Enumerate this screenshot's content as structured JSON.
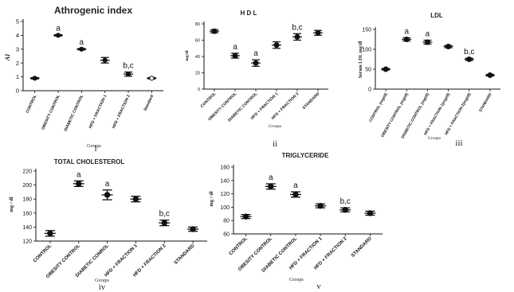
{
  "chart_data": [
    {
      "type": "scatter",
      "title": "Athrogenic index",
      "xlabel": "Groups",
      "ylabel": "AI",
      "panel_label": "i",
      "ylim": [
        0,
        5
      ],
      "yticks": [
        "0",
        "1",
        "2",
        "3",
        "4",
        "5"
      ],
      "categories": [
        "CONTROL",
        "OBESITY CONTROL",
        "DIABETIC CONTROL",
        "HFD + FRACTION 1",
        "HFD + FRACTION 2",
        "Standard"
      ],
      "values": [
        0.9,
        4.0,
        3.0,
        2.2,
        1.2,
        0.9
      ],
      "errors": [
        0.05,
        0.05,
        0.05,
        0.2,
        0.15,
        0.05
      ],
      "annotations": [
        "",
        "a",
        "a",
        "",
        "b,c",
        ""
      ]
    },
    {
      "type": "scatter",
      "title": "H D L",
      "xlabel": "Groups",
      "ylabel": "mg/dl",
      "panel_label": "ii",
      "ylim": [
        0,
        80
      ],
      "yticks": [
        "0",
        "20",
        "40",
        "60",
        "80"
      ],
      "categories": [
        "CONTROL",
        "OBESITY CONTROL",
        "DIABETIC CONTROL",
        "HFD + FRACTION 1",
        "HFD + FRACTION 2",
        "STANDARD"
      ],
      "values": [
        71,
        41,
        32,
        54,
        64,
        69
      ],
      "errors": [
        2,
        3,
        4,
        4,
        4,
        3
      ],
      "annotations": [
        "",
        "a",
        "a",
        "",
        "b,c",
        ""
      ]
    },
    {
      "type": "scatter",
      "title": "LDL",
      "xlabel": "Groups",
      "ylabel": "Serum LDL mg/dl",
      "panel_label": "iii",
      "ylim": [
        0,
        150
      ],
      "yticks": [
        "0",
        "50",
        "100",
        "150"
      ],
      "categories": [
        "CONTROL (mg/dl)",
        "OBESITY CONTROL (mg/dl)",
        "DIABETIC CONTROL (mg/dl)",
        "HFD + FRACTION 1(mg/dl)",
        "HFD + FRACTION 2(mg/dl)",
        "STANDARD"
      ],
      "values": [
        50,
        125,
        118,
        107,
        75,
        35
      ],
      "errors": [
        2,
        4,
        5,
        3,
        3,
        2
      ],
      "annotations": [
        "",
        "a",
        "a",
        "",
        "b,c",
        ""
      ]
    },
    {
      "type": "scatter",
      "title": "TOTAL CHOLESTEROL",
      "xlabel": "Groups",
      "ylabel": "mg / dl",
      "panel_label": "iv",
      "ylim": [
        120,
        220
      ],
      "yticks": [
        "120",
        "140",
        "160",
        "180",
        "200",
        "220"
      ],
      "categories": [
        "CONTROL",
        "OBESITY CONTROL",
        "DIABETIC CONROL",
        "HFD + FRACTION 1",
        "HFD + FRACTION 2",
        "STANDARD"
      ],
      "values": [
        131,
        202,
        186,
        180,
        146,
        137
      ],
      "errors": [
        4,
        4,
        7,
        4,
        4,
        3
      ],
      "annotations": [
        "",
        "a",
        "a",
        "",
        "b,c",
        ""
      ]
    },
    {
      "type": "scatter",
      "title": "TRIGLYCERIDE",
      "xlabel": "Groups",
      "ylabel": "mg / dl",
      "panel_label": "v",
      "ylim": [
        60,
        160
      ],
      "yticks": [
        "60",
        "80",
        "100",
        "120",
        "140",
        "160"
      ],
      "categories": [
        "CONTROL",
        "OBESITY CONTROL",
        "DIABETIC CONTROL",
        "HFD + FRACTION 1",
        "HFD + FRACTION 2",
        "STANDARD"
      ],
      "values": [
        86,
        131,
        119,
        102,
        96,
        91
      ],
      "errors": [
        3,
        4,
        4,
        3,
        3,
        3
      ],
      "annotations": [
        "",
        "a",
        "a",
        "",
        "b,c",
        ""
      ]
    }
  ]
}
